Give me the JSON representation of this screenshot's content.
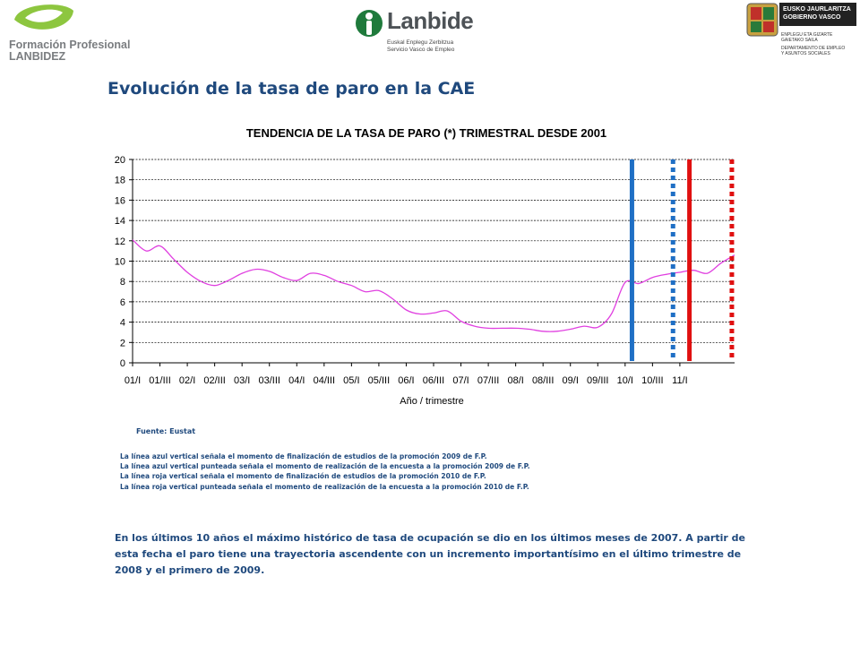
{
  "logos": {
    "fp_line1": "Formación Profesional",
    "fp_line2": "LANBIDEZ",
    "lanbide_name": "Lanbide",
    "lanbide_sub1": "Euskal Enplegu Zerbitzua",
    "lanbide_sub2": "Servicio Vasco de Empleo",
    "gv_line1": "EUSKO JAURLARITZA",
    "gv_line2": "GOBIERNO VASCO",
    "gv_small1": "ENPLEGU ETA GIZARTE",
    "gv_small2": "GAIETAKO SAILA",
    "gv_small3": "DEPARTAMENTO DE EMPLEO",
    "gv_small4": "Y ASUNTOS SOCIALES"
  },
  "page_title": "Evolución de la tasa de paro en la CAE",
  "chart_data": {
    "type": "line",
    "title": "TENDENCIA DE LA TASA DE PARO (*) TRIMESTRAL DESDE 2001",
    "xlabel": "Año / trimestre",
    "ylabel": "",
    "ylim": [
      0,
      20
    ],
    "yticks": [
      "0",
      "2",
      "4",
      "6",
      "8",
      "10",
      "12",
      "14",
      "16",
      "18",
      "20"
    ],
    "xticks": [
      "01/I",
      "01/III",
      "02/I",
      "02/III",
      "03/I",
      "03/III",
      "04/I",
      "04/III",
      "05/I",
      "05/III",
      "06/I",
      "06/III",
      "07/I",
      "07/III",
      "08/I",
      "08/III",
      "09/I",
      "09/III",
      "10/I",
      "10/III",
      "11/I"
    ],
    "grid": true,
    "line_color": "#e040e0",
    "series": [
      {
        "values": [
          12.1,
          11.0,
          11.5,
          10.2,
          8.9,
          8.0,
          7.6,
          8.1,
          8.8,
          9.2,
          9.0,
          8.4,
          8.1,
          8.8,
          8.6,
          8.0,
          7.6,
          7.0,
          7.1,
          6.3,
          5.2,
          4.8,
          4.9,
          5.1,
          4.1,
          3.6,
          3.4,
          3.4,
          3.4,
          3.3,
          3.1,
          3.1,
          3.3,
          3.6,
          3.5,
          4.8,
          7.9,
          7.8,
          8.4,
          8.7,
          8.9,
          9.1,
          8.8,
          9.8,
          10.6
        ]
      }
    ],
    "markers": [
      {
        "x_index": 36.5,
        "color": "#1f6fc5",
        "style": "solid"
      },
      {
        "x_index": 39.5,
        "color": "#1f6fc5",
        "style": "dotted"
      },
      {
        "x_index": 40.7,
        "color": "#e01010",
        "style": "solid"
      },
      {
        "x_index": 43.8,
        "color": "#e01010",
        "style": "dotted"
      }
    ]
  },
  "source": "Fuente: Eustat",
  "notes": [
    "La línea azul vertical señala el momento de finalización de estudios de la promoción 2009 de F.P.",
    "La línea azul vertical punteada señala el momento de realización de la encuesta a la promoción 2009 de F.P.",
    "La línea roja vertical señala el momento de finalización de estudios de la promoción 2010 de F.P.",
    "La línea roja vertical punteada señala el momento de realización de la encuesta a la promoción 2010 de F.P."
  ],
  "paragraph": "En los últimos 10  años el máximo histórico de tasa de ocupación se dio en los últimos meses de 2007.  A partir de esta fecha el paro tiene una trayectoria ascendente con un incremento importantísimo en el último trimestre de 2008  y el primero de 2009."
}
